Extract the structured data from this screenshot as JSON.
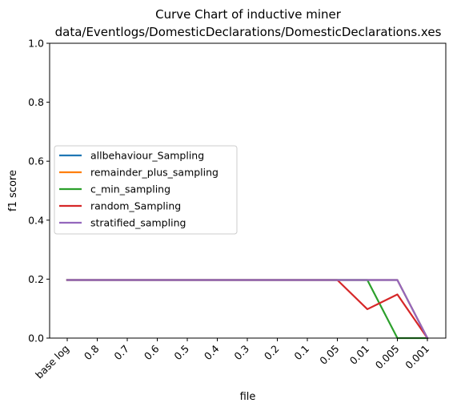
{
  "chart_data": {
    "type": "line",
    "title": "Curve Chart of inductive miner",
    "subtitle": "data/Eventlogs/DomesticDeclarations/DomesticDeclarations.xes",
    "xlabel": "file",
    "ylabel": "f1 score",
    "ylim": [
      0,
      1.0
    ],
    "yticks": [
      "0.0",
      "0.2",
      "0.4",
      "0.6",
      "0.8",
      "1.0"
    ],
    "categories": [
      "base log",
      "0.8",
      "0.7",
      "0.6",
      "0.5",
      "0.4",
      "0.3",
      "0.2",
      "0.1",
      "0.05",
      "0.01",
      "0.005",
      "0.001"
    ],
    "legend_position": "center-left",
    "grid": false,
    "series": [
      {
        "name": "allbehaviour_Sampling",
        "color": "#1f77b4",
        "values": [
          0.197,
          0.197,
          0.197,
          0.197,
          0.197,
          0.197,
          0.197,
          0.197,
          0.197,
          0.197,
          0.197,
          0.197,
          0.0
        ]
      },
      {
        "name": "remainder_plus_sampling",
        "color": "#ff7f0e",
        "values": [
          0.197,
          0.197,
          0.197,
          0.197,
          0.197,
          0.197,
          0.197,
          0.197,
          0.197,
          0.197,
          0.197,
          0.197,
          0.0
        ]
      },
      {
        "name": "c_min_sampling",
        "color": "#2ca02c",
        "values": [
          0.197,
          0.197,
          0.197,
          0.197,
          0.197,
          0.197,
          0.197,
          0.197,
          0.197,
          0.197,
          0.197,
          0.0,
          0.0
        ]
      },
      {
        "name": "random_Sampling",
        "color": "#d62728",
        "values": [
          0.197,
          0.197,
          0.197,
          0.197,
          0.197,
          0.197,
          0.197,
          0.197,
          0.197,
          0.197,
          0.098,
          0.148,
          0.0
        ]
      },
      {
        "name": "stratified_sampling",
        "color": "#9467bd",
        "values": [
          0.197,
          0.197,
          0.197,
          0.197,
          0.197,
          0.197,
          0.197,
          0.197,
          0.197,
          0.197,
          0.197,
          0.197,
          0.0
        ]
      }
    ]
  }
}
